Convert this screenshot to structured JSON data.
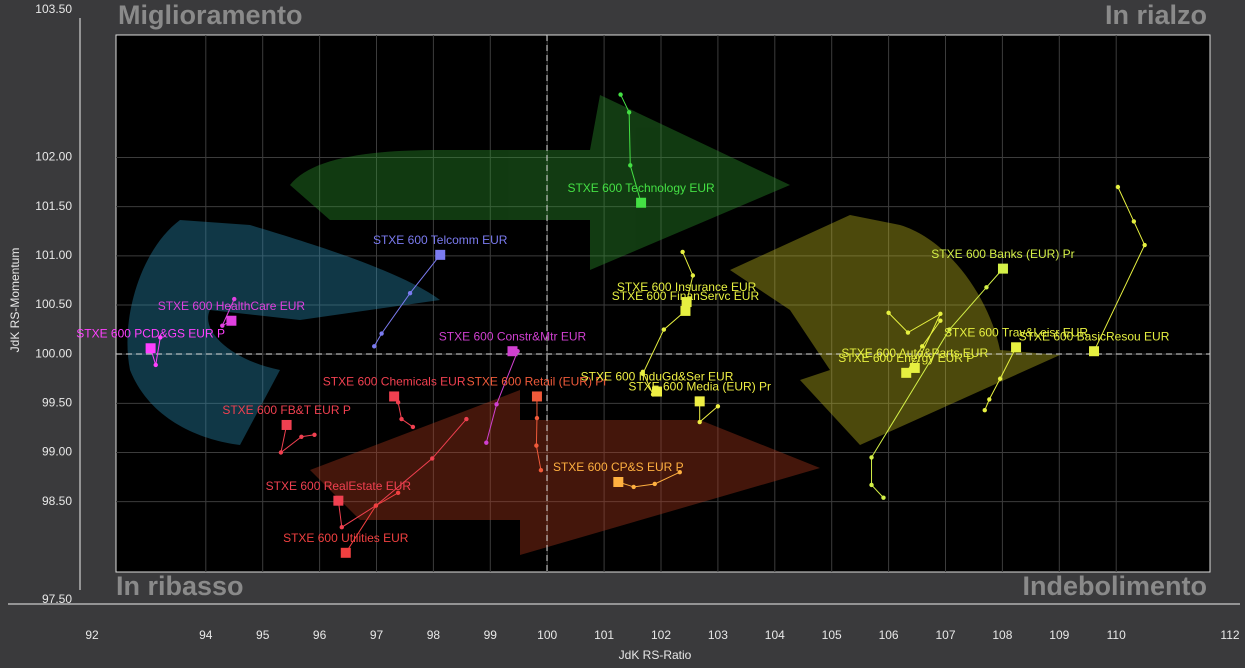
{
  "chart_data": {
    "type": "rrg",
    "xlabel": "JdK RS-Ratio",
    "ylabel": "JdK RS-Momentum",
    "quadrants": [
      "Miglioramento",
      "In rialzo",
      "In ribasso",
      "Indebolimento"
    ],
    "xlim": [
      92,
      112
    ],
    "ylim": [
      97.5,
      103.5
    ],
    "xticks": [
      92,
      94,
      95,
      96,
      97,
      98,
      99,
      100,
      101,
      102,
      103,
      104,
      105,
      106,
      107,
      108,
      109,
      110,
      112
    ],
    "yticks": [
      {
        "value": 97.5,
        "label": "97.50"
      },
      {
        "value": 98.5,
        "label": "98.50"
      },
      {
        "value": 99,
        "label": "99.00"
      },
      {
        "value": 99.5,
        "label": "99.50"
      },
      {
        "value": 100,
        "label": "100.00"
      },
      {
        "value": 100.5,
        "label": "100.50"
      },
      {
        "value": 101,
        "label": "101.00"
      },
      {
        "value": 101.5,
        "label": "101.50"
      },
      {
        "value": 102,
        "label": "102.00"
      },
      {
        "value": 103.5,
        "label": "103.50"
      }
    ],
    "grid": true,
    "series": [
      {
        "name": "STXE 600 Technology EUR",
        "color": "#44e044",
        "x": [
          101.29,
          101.44,
          101.46,
          101.65
        ],
        "y": [
          102.64,
          102.46,
          101.92,
          101.54
        ]
      },
      {
        "name": "STXE 600 Telcomm EUR",
        "color": "#7b7bf0",
        "x": [
          96.96,
          97.09,
          97.59,
          98.12
        ],
        "y": [
          100.08,
          100.21,
          100.62,
          101.01
        ]
      },
      {
        "name": "STXE 600 HealthCare EUR",
        "color": "#e040e0",
        "x": [
          94.5,
          94.29,
          94.45
        ],
        "y": [
          100.56,
          100.29,
          100.34
        ]
      },
      {
        "name": "STXE 600 PCD&GS EUR P",
        "color": "#ff40ff",
        "x": [
          93.2,
          93.12,
          93.03
        ],
        "y": [
          100.17,
          99.89,
          100.06
        ]
      },
      {
        "name": "STXE 600 Constr&Mtr EUR",
        "color": "#d040d0",
        "x": [
          98.93,
          99.11,
          99.48,
          99.39
        ],
        "y": [
          99.1,
          99.49,
          100.03,
          100.03
        ]
      },
      {
        "name": "STXE 600 Chemicals EUR",
        "color": "#f04050",
        "x": [
          97.64,
          97.44,
          97.38,
          97.31
        ],
        "y": [
          99.26,
          99.34,
          99.51,
          99.57
        ]
      },
      {
        "name": "STXE 600 FB&T EUR P",
        "color": "#f04050",
        "x": [
          95.91,
          95.68,
          95.32,
          95.42
        ],
        "y": [
          99.18,
          99.16,
          99.0,
          99.28
        ]
      },
      {
        "name": "STXE 600 RealEstate EUR",
        "color": "#f04050",
        "x": [
          98.58,
          97.98,
          96.99,
          96.39,
          96.33
        ],
        "y": [
          99.34,
          98.94,
          98.46,
          98.24,
          98.51
        ]
      },
      {
        "name": "STXE 600 Utilities EUR",
        "color": "#f04040",
        "x": [
          97.38,
          96.99,
          96.46
        ],
        "y": [
          98.59,
          98.46,
          97.98
        ]
      },
      {
        "name": "STXE 600 Retail (EUR) Pr",
        "color": "#f05a3a",
        "x": [
          99.89,
          99.81,
          99.82,
          99.82
        ],
        "y": [
          98.82,
          99.07,
          99.35,
          99.57
        ]
      },
      {
        "name": "STXE 600 CP&S EUR P",
        "color": "#ffb040",
        "x": [
          102.33,
          101.89,
          101.52,
          101.25
        ],
        "y": [
          98.8,
          98.68,
          98.65,
          98.7
        ]
      },
      {
        "name": "STXE 600 InduGd&Ser EUR",
        "color": "#eeee44",
        "x": [
          101.68,
          101.86,
          101.93
        ],
        "y": [
          99.82,
          99.59,
          99.62
        ]
      },
      {
        "name": "STXE 600 Media (EUR) Pr",
        "color": "#eeee44",
        "x": [
          103.0,
          102.68,
          102.68
        ],
        "y": [
          99.47,
          99.31,
          99.52
        ]
      },
      {
        "name": "STXE 600 Insurance EUR",
        "color": "#e6f040",
        "x": [
          102.38,
          102.56,
          102.45
        ],
        "y": [
          101.04,
          100.8,
          100.53
        ]
      },
      {
        "name": "STXE 600 FinanServc EUR",
        "color": "#e6f040",
        "x": [
          101.68,
          102.05,
          102.43
        ],
        "y": [
          99.8,
          100.25,
          100.44
        ]
      },
      {
        "name": "STXE 600 Banks (EUR) Pr",
        "color": "#d4f048",
        "x": [
          105.91,
          105.7,
          105.7,
          107.07,
          107.72,
          108.01
        ],
        "y": [
          98.54,
          98.67,
          98.95,
          100.25,
          100.68,
          100.87
        ]
      },
      {
        "name": "STXE 600 BasicResou EUR",
        "color": "#e6f040",
        "x": [
          110.03,
          110.31,
          110.5,
          109.61
        ],
        "y": [
          101.7,
          101.35,
          101.11,
          100.03
        ]
      },
      {
        "name": "STXE 600 Trav&Leisr EUR",
        "color": "#e6f040",
        "x": [
          107.69,
          107.77,
          107.96,
          108.24
        ],
        "y": [
          99.43,
          99.54,
          99.75,
          100.07
        ]
      },
      {
        "name": "STXE 600 Auto&Parts EUR",
        "color": "#e6f040",
        "x": [
          106.0,
          106.34,
          106.91,
          106.46
        ],
        "y": [
          100.42,
          100.22,
          100.41,
          99.86
        ]
      },
      {
        "name": "STXE 600 Energy EUR P",
        "color": "#e6f040",
        "x": [
          106.91,
          106.59,
          106.31
        ],
        "y": [
          100.34,
          100.08,
          99.81
        ]
      }
    ]
  }
}
